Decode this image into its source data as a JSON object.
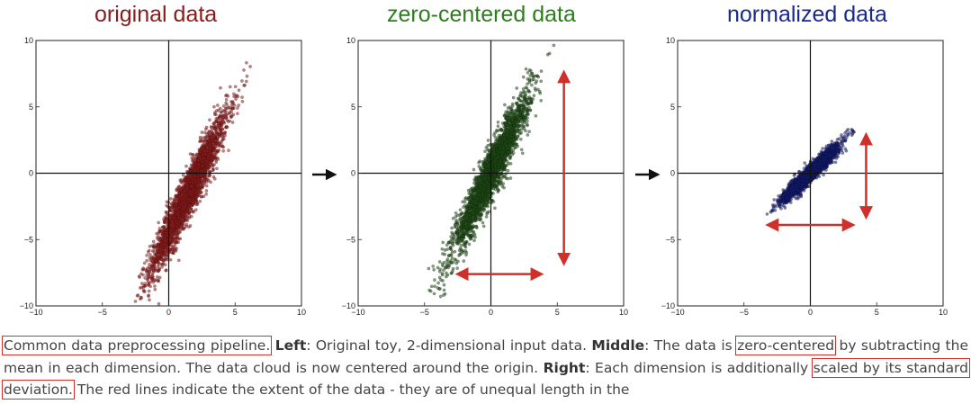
{
  "chart_data": [
    {
      "type": "scatter",
      "title": "original data",
      "title_color": "#8b1c1c",
      "point_color": "#8b1c1c",
      "xlim": [
        -10,
        10
      ],
      "ylim": [
        -10,
        10
      ],
      "x_ticks": [
        "−10",
        "−5",
        "0",
        "5",
        "10"
      ],
      "y_ticks": [
        "10",
        "5",
        "0",
        "−5",
        "−10"
      ],
      "grid": false,
      "axes_through_origin": true,
      "distribution": {
        "x_mean": 1.5,
        "y_mean": -1.5,
        "x_std": 1.45,
        "y_std": 3.0,
        "correlation": 0.95,
        "n_points": 2500
      }
    },
    {
      "type": "scatter",
      "title": "zero-centered data",
      "title_color": "#2e7d1f",
      "point_color": "#1f4a16",
      "xlim": [
        -10,
        10
      ],
      "ylim": [
        -10,
        10
      ],
      "x_ticks": [
        "−10",
        "−5",
        "0",
        "5",
        "10"
      ],
      "y_ticks": [
        "10",
        "5",
        "0",
        "−5",
        "−10"
      ],
      "grid": false,
      "axes_through_origin": true,
      "distribution": {
        "x_mean": 0,
        "y_mean": 0,
        "x_std": 1.45,
        "y_std": 3.0,
        "correlation": 0.95,
        "n_points": 2500
      },
      "extent_arrows": {
        "horizontal": [
          -2.5,
          3.8
        ],
        "horizontal_y": -7.6,
        "vertical": [
          -6.8,
          7.6
        ],
        "vertical_x": 5.5
      }
    },
    {
      "type": "scatter",
      "title": "normalized data",
      "title_color": "#1a2a8c",
      "point_color": "#141c6e",
      "xlim": [
        -10,
        10
      ],
      "ylim": [
        -10,
        10
      ],
      "x_ticks": [
        "−10",
        "−5",
        "0",
        "5",
        "10"
      ],
      "y_ticks": [
        "10",
        "5",
        "0",
        "−5",
        "−10"
      ],
      "grid": false,
      "axes_through_origin": true,
      "distribution": {
        "x_mean": 0,
        "y_mean": 0,
        "x_std": 1.0,
        "y_std": 1.0,
        "correlation": 0.95,
        "n_points": 2500
      },
      "extent_arrows": {
        "horizontal": [
          -3.2,
          3.2
        ],
        "horizontal_y": -3.9,
        "vertical": [
          -3.3,
          2.9
        ],
        "vertical_x": 4.2
      }
    }
  ],
  "caption": {
    "part1": "Common data preprocessing pipeline.",
    "left_label": "Left",
    "left_text": ": Original toy, 2-dimensional input data. ",
    "middle_label": "Middle",
    "middle_text": ": The data is ",
    "boxed_zero": "zero-centered",
    "middle_text2": " by subtracting the mean in each dimension. The data cloud is now centered around the origin. ",
    "right_label": "Right",
    "right_text": ": Each dimension is additionally ",
    "boxed_scaled": "scaled by its standard deviation.",
    "tail_text": " The red lines indicate the extent of the data - they are of unequal length in the"
  },
  "colors": {
    "arrow_red": "#d0302a",
    "box_red": "#d0302a"
  }
}
